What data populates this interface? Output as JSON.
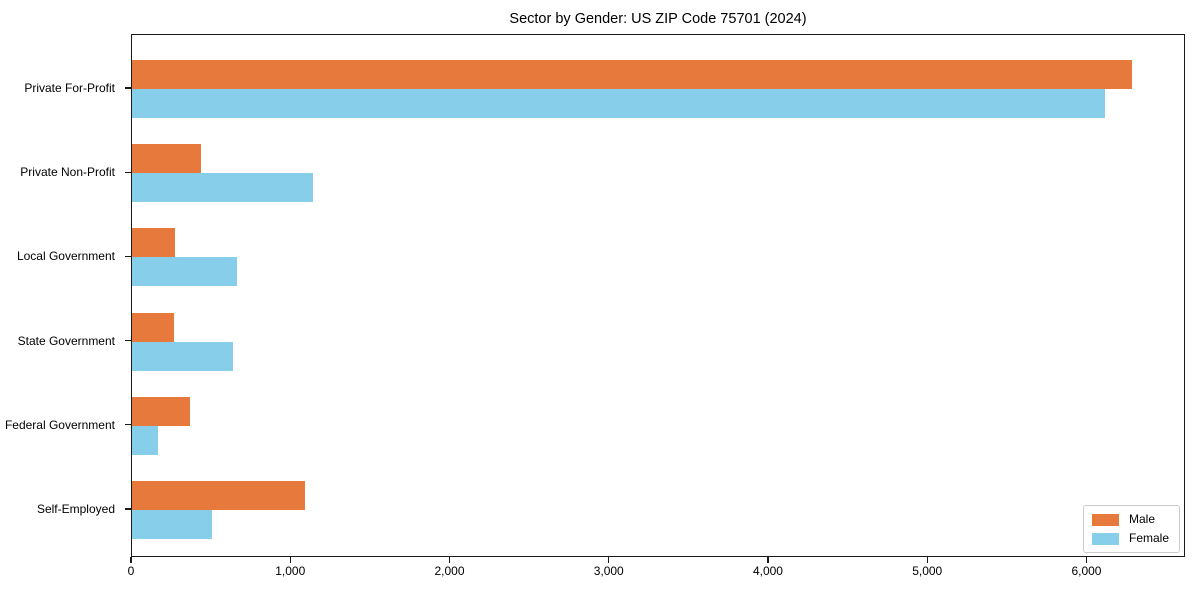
{
  "chart_data": {
    "type": "bar",
    "orientation": "horizontal",
    "title": "Sector by Gender: US ZIP Code 75701 (2024)",
    "categories": [
      "Private For-Profit",
      "Private Non-Profit",
      "Local Government",
      "State Government",
      "Federal Government",
      "Self-Employed"
    ],
    "series": [
      {
        "name": "Male",
        "color": "#e8793d",
        "values": [
          6280,
          435,
          270,
          265,
          365,
          1085
        ]
      },
      {
        "name": "Female",
        "color": "#87ceeb",
        "values": [
          6110,
          1135,
          660,
          635,
          165,
          505
        ]
      }
    ],
    "xlim": [
      0,
      6600
    ],
    "x_ticks": [
      0,
      1000,
      2000,
      3000,
      4000,
      5000,
      6000
    ],
    "x_tick_labels": [
      "0",
      "1,000",
      "2,000",
      "3,000",
      "4,000",
      "5,000",
      "6,000"
    ],
    "xlabel": "",
    "ylabel": "",
    "grid": false,
    "legend_position": "lower right"
  }
}
